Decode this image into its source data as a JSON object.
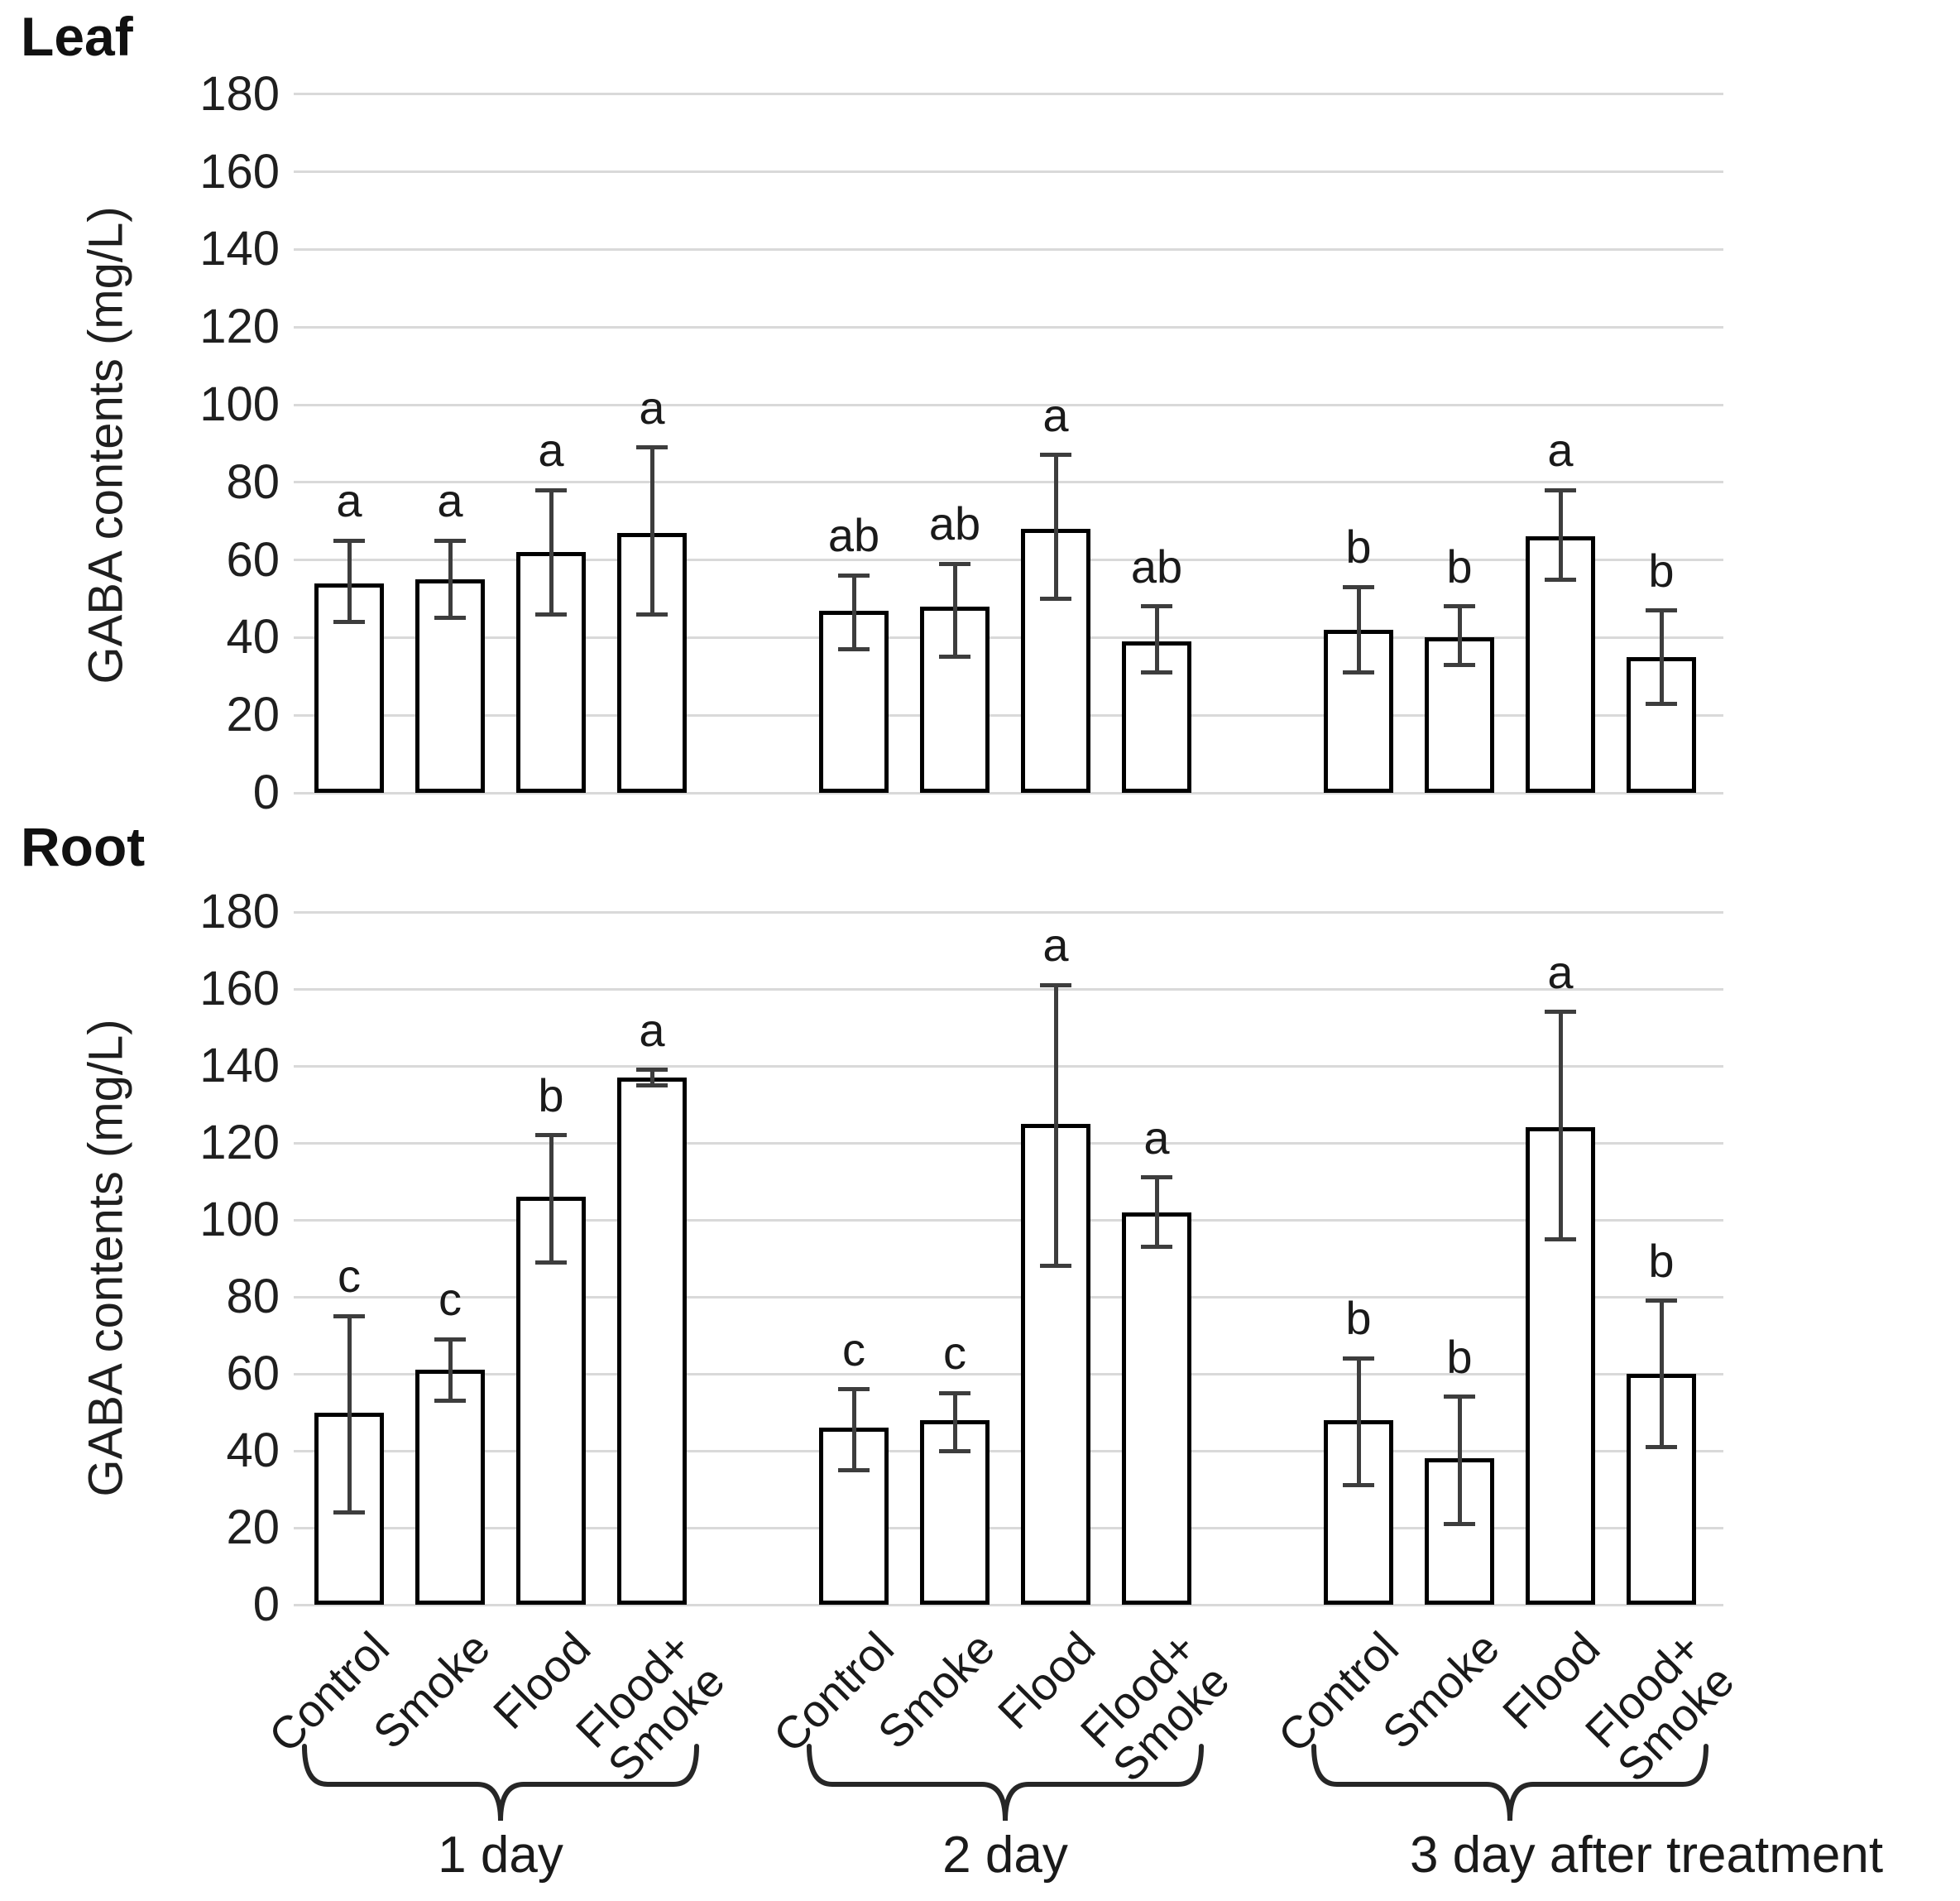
{
  "chart_data": [
    {
      "id": "leaf",
      "type": "bar",
      "title": "Leaf",
      "ylabel": "GABA contents (mg/L)",
      "ylim": [
        0,
        180
      ],
      "ytick_step": 20,
      "grid": true,
      "legend_position": "none",
      "categories": [
        "Control",
        "Smoke",
        "Flood",
        "Flood+Smoke"
      ],
      "groups": [
        {
          "label": "1 day",
          "bars": [
            {
              "category": "Control",
              "value": 54,
              "err_low": 44,
              "err_high": 65,
              "letter": "a"
            },
            {
              "category": "Smoke",
              "value": 55,
              "err_low": 45,
              "err_high": 65,
              "letter": "a"
            },
            {
              "category": "Flood",
              "value": 62,
              "err_low": 46,
              "err_high": 78,
              "letter": "a"
            },
            {
              "category": "Flood+Smoke",
              "value": 67,
              "err_low": 46,
              "err_high": 89,
              "letter": "a"
            }
          ]
        },
        {
          "label": "2 day",
          "bars": [
            {
              "category": "Control",
              "value": 47,
              "err_low": 37,
              "err_high": 56,
              "letter": "ab"
            },
            {
              "category": "Smoke",
              "value": 48,
              "err_low": 35,
              "err_high": 59,
              "letter": "ab"
            },
            {
              "category": "Flood",
              "value": 68,
              "err_low": 50,
              "err_high": 87,
              "letter": "a"
            },
            {
              "category": "Flood+Smoke",
              "value": 39,
              "err_low": 31,
              "err_high": 48,
              "letter": "ab"
            }
          ]
        },
        {
          "label": "3 day after treatment",
          "bars": [
            {
              "category": "Control",
              "value": 42,
              "err_low": 31,
              "err_high": 53,
              "letter": "b"
            },
            {
              "category": "Smoke",
              "value": 40,
              "err_low": 33,
              "err_high": 48,
              "letter": "b"
            },
            {
              "category": "Flood",
              "value": 66,
              "err_low": 55,
              "err_high": 78,
              "letter": "a"
            },
            {
              "category": "Flood+Smoke",
              "value": 35,
              "err_low": 23,
              "err_high": 47,
              "letter": "b"
            }
          ]
        }
      ]
    },
    {
      "id": "root",
      "type": "bar",
      "title": "Root",
      "ylabel": "GABA contents (mg/L)",
      "ylim": [
        0,
        180
      ],
      "ytick_step": 20,
      "grid": true,
      "legend_position": "none",
      "categories": [
        "Control",
        "Smoke",
        "Flood",
        "Flood+Smoke"
      ],
      "groups": [
        {
          "label": "1 day",
          "bars": [
            {
              "category": "Control",
              "value": 50,
              "err_low": 24,
              "err_high": 75,
              "letter": "c"
            },
            {
              "category": "Smoke",
              "value": 61,
              "err_low": 53,
              "err_high": 69,
              "letter": "c"
            },
            {
              "category": "Flood",
              "value": 106,
              "err_low": 89,
              "err_high": 122,
              "letter": "b"
            },
            {
              "category": "Flood+Smoke",
              "value": 137,
              "err_low": 135,
              "err_high": 139,
              "letter": "a"
            }
          ]
        },
        {
          "label": "2 day",
          "bars": [
            {
              "category": "Control",
              "value": 46,
              "err_low": 35,
              "err_high": 56,
              "letter": "c"
            },
            {
              "category": "Smoke",
              "value": 48,
              "err_low": 40,
              "err_high": 55,
              "letter": "c"
            },
            {
              "category": "Flood",
              "value": 125,
              "err_low": 88,
              "err_high": 161,
              "letter": "a"
            },
            {
              "category": "Flood+Smoke",
              "value": 102,
              "err_low": 93,
              "err_high": 111,
              "letter": "a"
            }
          ]
        },
        {
          "label": "3 day after treatment",
          "bars": [
            {
              "category": "Control",
              "value": 48,
              "err_low": 31,
              "err_high": 64,
              "letter": "b"
            },
            {
              "category": "Smoke",
              "value": 38,
              "err_low": 21,
              "err_high": 54,
              "letter": "b"
            },
            {
              "category": "Flood",
              "value": 124,
              "err_low": 95,
              "err_high": 154,
              "letter": "a"
            },
            {
              "category": "Flood+Smoke",
              "value": 60,
              "err_low": 41,
              "err_high": 79,
              "letter": "b"
            }
          ]
        }
      ]
    }
  ],
  "x_axis": {
    "category_label_lines": [
      [
        "Control"
      ],
      [
        "Smoke"
      ],
      [
        "Flood"
      ],
      [
        "Flood+",
        "Smoke"
      ]
    ],
    "group_labels": [
      "1 day",
      "2 day",
      "3 day after treatment"
    ]
  }
}
